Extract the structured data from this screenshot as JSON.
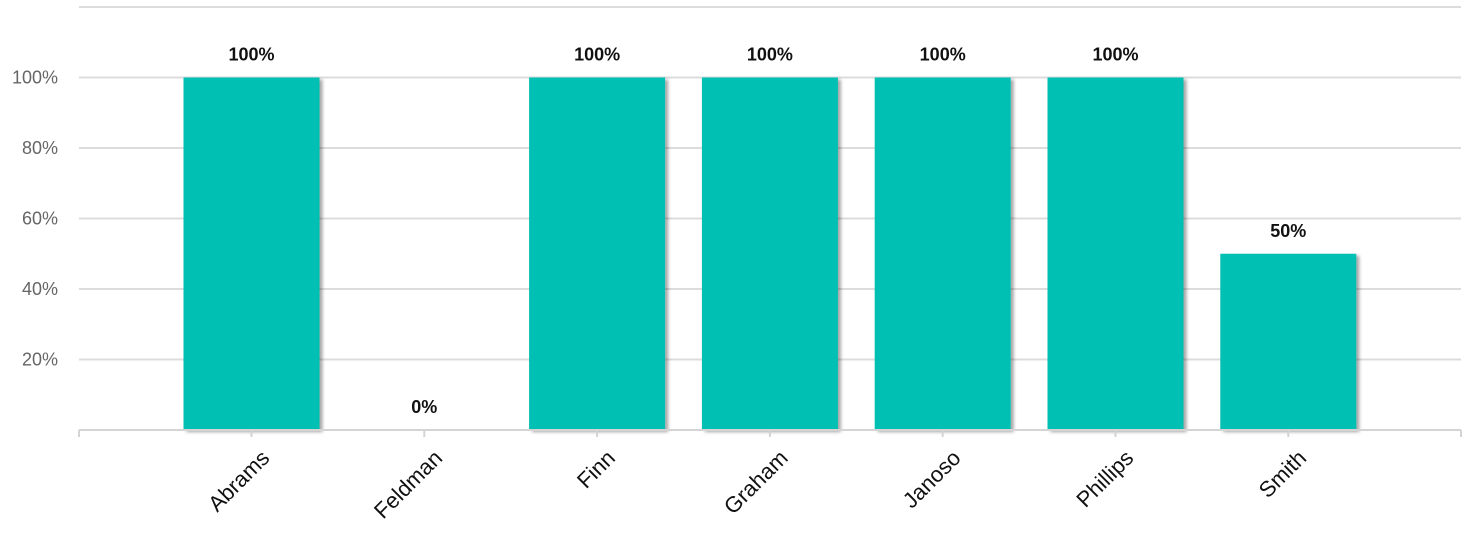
{
  "chart_data": {
    "type": "bar",
    "categories": [
      "Abrams",
      "Feldman",
      "Finn",
      "Graham",
      "Janoso",
      "Phillips",
      "Smith"
    ],
    "values": [
      100,
      0,
      100,
      100,
      100,
      100,
      50
    ],
    "data_labels": [
      "100%",
      "0%",
      "100%",
      "100%",
      "100%",
      "100%",
      "50%"
    ],
    "yticks": [
      20,
      40,
      60,
      80,
      100
    ],
    "ytick_labels": [
      "20%",
      "40%",
      "60%",
      "80%",
      "100%"
    ],
    "ylim": [
      0,
      120
    ],
    "title": "",
    "xlabel": "",
    "ylabel": "",
    "grid": true,
    "legend": "none",
    "bar_color": "#00bfb3"
  }
}
